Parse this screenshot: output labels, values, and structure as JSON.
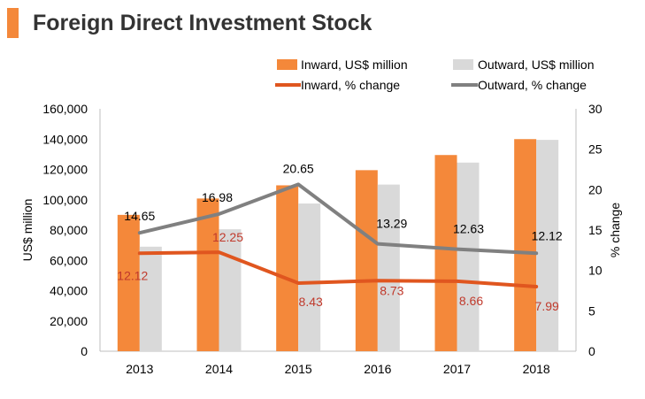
{
  "page_title": "Foreign Direct Investment Stock",
  "colors": {
    "accent": "#f4883a",
    "inward_bar": "#f4883a",
    "outward_bar": "#d9d9d9",
    "inward_line": "#e0561f",
    "outward_line": "#808080",
    "inward_label": "#c0392b",
    "outward_label": "#000000",
    "axis": "#bfbfbf"
  },
  "chart_data": {
    "type": "bar",
    "title": "Foreign Direct Investment Stock",
    "categories": [
      "2013",
      "2014",
      "2015",
      "2016",
      "2017",
      "2018"
    ],
    "series": [
      {
        "name": "Inward, US$ million",
        "kind": "bar",
        "axis": "left",
        "values": [
          90000,
          100800,
          109500,
          119500,
          129500,
          140000
        ]
      },
      {
        "name": "Outward, US$ million",
        "kind": "bar",
        "axis": "left",
        "values": [
          69000,
          80500,
          97500,
          110000,
          124500,
          139500
        ]
      },
      {
        "name": "Inward, % change",
        "kind": "line",
        "axis": "right",
        "values": [
          12.12,
          12.25,
          8.43,
          8.73,
          8.66,
          7.99
        ],
        "labels": [
          "12.12",
          "12.25",
          "8.43",
          "8.73",
          "8.66",
          "7.99"
        ]
      },
      {
        "name": "Outward, % change",
        "kind": "line",
        "axis": "right",
        "values": [
          14.65,
          16.98,
          20.65,
          13.29,
          12.63,
          12.12
        ],
        "labels": [
          "14.65",
          "16.98",
          "20.65",
          "13.29",
          "12.63",
          "12.12"
        ]
      }
    ],
    "ylabel": "US$ million",
    "y2label": "% change",
    "ylim": [
      0,
      160000
    ],
    "y2lim": [
      0,
      30
    ],
    "yticks": [
      0,
      20000,
      40000,
      60000,
      80000,
      100000,
      120000,
      140000,
      160000
    ],
    "ytick_labels": [
      "0",
      "20,000",
      "40,000",
      "60,000",
      "80,000",
      "100,000",
      "120,000",
      "140,000",
      "160,000"
    ],
    "y2ticks": [
      0,
      5,
      10,
      15,
      20,
      25,
      30
    ],
    "y2tick_labels": [
      "0",
      "5",
      "10",
      "15",
      "20",
      "25",
      "30"
    ],
    "legend_position": "top-right",
    "grid": false
  }
}
